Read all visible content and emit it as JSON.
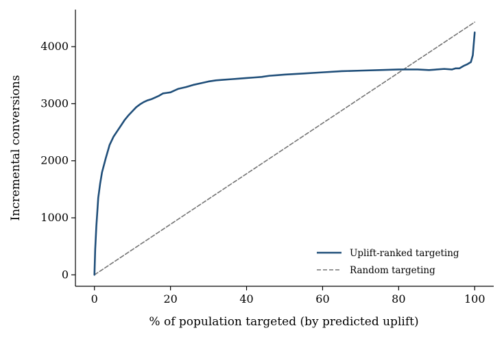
{
  "chart_data": {
    "type": "line",
    "title": "",
    "xlabel": "% of population targeted (by predicted uplift)",
    "ylabel": "Incremental conversions",
    "xlim": [
      -5,
      105
    ],
    "ylim": [
      -200,
      4650
    ],
    "x_ticks": [
      0,
      20,
      40,
      60,
      80,
      100
    ],
    "y_ticks": [
      0,
      1000,
      2000,
      3000,
      4000
    ],
    "grid": false,
    "legend_position": "lower-right",
    "series": [
      {
        "name": "Uplift-ranked targeting",
        "color": "#1f4e79",
        "style": "solid",
        "x": [
          0,
          0.2,
          0.5,
          0.8,
          1,
          1.5,
          2,
          3,
          4,
          5,
          6,
          7,
          8,
          9,
          10,
          11,
          12,
          13,
          14,
          15,
          16,
          17,
          18,
          19,
          20,
          22,
          24,
          26,
          28,
          30,
          32,
          34,
          36,
          38,
          40,
          42,
          44,
          46,
          48,
          50,
          55,
          60,
          65,
          70,
          75,
          80,
          85,
          88,
          90,
          92,
          94,
          95,
          96,
          97,
          98,
          99,
          99.5,
          100
        ],
        "y": [
          0,
          450,
          850,
          1150,
          1350,
          1600,
          1800,
          2050,
          2280,
          2420,
          2520,
          2620,
          2720,
          2800,
          2870,
          2940,
          2990,
          3030,
          3060,
          3080,
          3110,
          3140,
          3180,
          3190,
          3200,
          3260,
          3290,
          3330,
          3360,
          3390,
          3410,
          3420,
          3430,
          3440,
          3450,
          3460,
          3470,
          3490,
          3500,
          3510,
          3530,
          3550,
          3570,
          3580,
          3590,
          3600,
          3600,
          3590,
          3600,
          3610,
          3600,
          3620,
          3620,
          3660,
          3690,
          3730,
          3850,
          4250
        ]
      },
      {
        "name": "Random targeting",
        "color": "#737373",
        "style": "dashed",
        "x": [
          0,
          100
        ],
        "y": [
          0,
          4430
        ]
      }
    ]
  }
}
